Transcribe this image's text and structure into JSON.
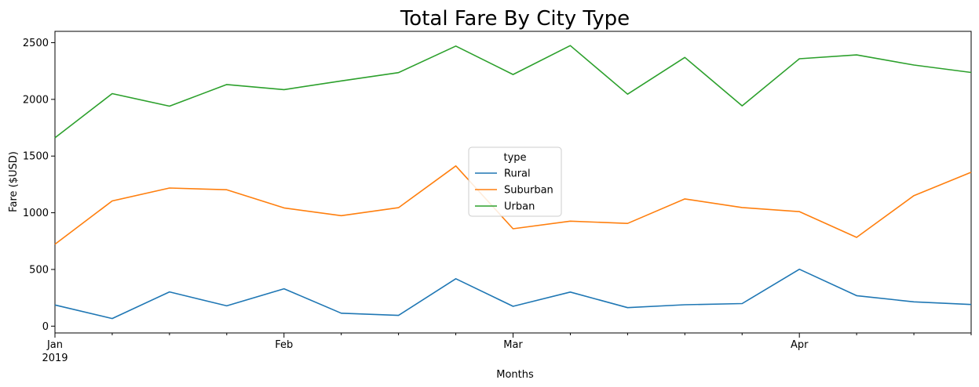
{
  "chart_data": {
    "type": "line",
    "title": "Total Fare By City Type",
    "xlabel": "Months",
    "ylabel": "Fare ($USD)",
    "x": [
      "2019-01-06",
      "2019-01-13",
      "2019-01-20",
      "2019-01-27",
      "2019-02-03",
      "2019-02-10",
      "2019-02-17",
      "2019-02-24",
      "2019-03-03",
      "2019-03-10",
      "2019-03-17",
      "2019-03-24",
      "2019-03-31",
      "2019-04-07",
      "2019-04-14",
      "2019-04-21",
      "2019-04-28"
    ],
    "xlim": [
      "2019-01-06",
      "2019-04-28"
    ],
    "ylim": [
      -60,
      2600
    ],
    "yticks": [
      0,
      500,
      1000,
      1500,
      2000,
      2500
    ],
    "xticks_major": [
      {
        "date": "2019-01-06",
        "label": "Jan",
        "sublabel": "2019"
      },
      {
        "date": "2019-02-03",
        "label": "Feb",
        "sublabel": ""
      },
      {
        "date": "2019-03-03",
        "label": "Mar",
        "sublabel": ""
      },
      {
        "date": "2019-04-07",
        "label": "Apr",
        "sublabel": ""
      }
    ],
    "xticks_minor": [
      "2019-01-13",
      "2019-01-20",
      "2019-01-27",
      "2019-02-10",
      "2019-02-17",
      "2019-02-24",
      "2019-03-10",
      "2019-03-17",
      "2019-03-24",
      "2019-03-31",
      "2019-04-14",
      "2019-04-21",
      "2019-04-28"
    ],
    "legend": {
      "title": "type",
      "placement": "center"
    },
    "grid": false,
    "series": [
      {
        "name": "Rural",
        "color": "#1f77b4",
        "values": [
          187,
          67,
          302,
          179,
          330,
          114,
          95,
          418,
          175,
          301,
          163,
          189,
          199,
          502,
          269,
          214,
          191
        ]
      },
      {
        "name": "Suburban",
        "color": "#ff7f0e",
        "values": [
          722,
          1104,
          1218,
          1203,
          1043,
          974,
          1045,
          1413,
          859,
          926,
          906,
          1122,
          1046,
          1010,
          783,
          1151,
          1357
        ]
      },
      {
        "name": "Urban",
        "color": "#2ca02c",
        "values": [
          1661,
          2051,
          1940,
          2131,
          2086,
          2163,
          2236,
          2470,
          2219,
          2474,
          2046,
          2370,
          1943,
          2358,
          2392,
          2303,
          2237
        ]
      }
    ]
  }
}
